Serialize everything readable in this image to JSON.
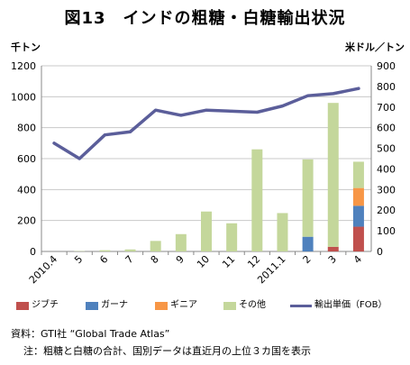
{
  "title": "図13　インドの粗糖・白糖輸出状況",
  "units": {
    "left": "千トン",
    "right": "米ドル／トン"
  },
  "legend": [
    {
      "key": "djibouti",
      "label": "ジブチ",
      "color": "#c0504d",
      "kind": "bar"
    },
    {
      "key": "ghana",
      "label": "ガーナ",
      "color": "#4f81bd",
      "kind": "bar"
    },
    {
      "key": "guinea",
      "label": "ギニア",
      "color": "#f79646",
      "kind": "bar"
    },
    {
      "key": "other",
      "label": "その他",
      "color": "#c4d79b",
      "kind": "bar"
    },
    {
      "key": "price",
      "label": "輸出単価（FOB）",
      "color": "#5b5e9a",
      "kind": "line"
    }
  ],
  "notes": {
    "source": "資料：GTI社 “Global Trade Atlas”",
    "note": "注：粗糖と白糖の合計、国別データは直近月の上位３カ国を表示"
  },
  "chart_data": {
    "type": "bar",
    "categories": [
      "2010.4",
      "5",
      "6",
      "7",
      "8",
      "9",
      "10",
      "11",
      "12",
      "2011.1",
      "2",
      "3",
      "4"
    ],
    "stacked": true,
    "series": [
      {
        "name": "ジブチ",
        "values": [
          0,
          0,
          0,
          0,
          0,
          0,
          0,
          0,
          0,
          0,
          0,
          30,
          160
        ]
      },
      {
        "name": "ガーナ",
        "values": [
          0,
          0,
          0,
          0,
          0,
          0,
          0,
          0,
          0,
          0,
          95,
          0,
          135
        ]
      },
      {
        "name": "ギニア",
        "values": [
          0,
          0,
          0,
          0,
          0,
          0,
          0,
          0,
          0,
          0,
          0,
          0,
          115
        ]
      },
      {
        "name": "その他",
        "values": [
          0,
          2,
          8,
          13,
          68,
          112,
          258,
          182,
          660,
          248,
          500,
          930,
          170
        ]
      }
    ],
    "line_series": {
      "name": "輸出単価（FOB）",
      "axis": "right",
      "values": [
        525,
        450,
        565,
        580,
        685,
        660,
        685,
        680,
        675,
        705,
        755,
        765,
        790
      ]
    },
    "y_left": {
      "min": 0,
      "max": 1200,
      "ticks": [
        0,
        200,
        400,
        600,
        800,
        1000,
        1200
      ]
    },
    "y_right": {
      "min": 0,
      "max": 900,
      "ticks": [
        0,
        100,
        200,
        300,
        400,
        500,
        600,
        700,
        800,
        900
      ]
    },
    "grid": true
  }
}
